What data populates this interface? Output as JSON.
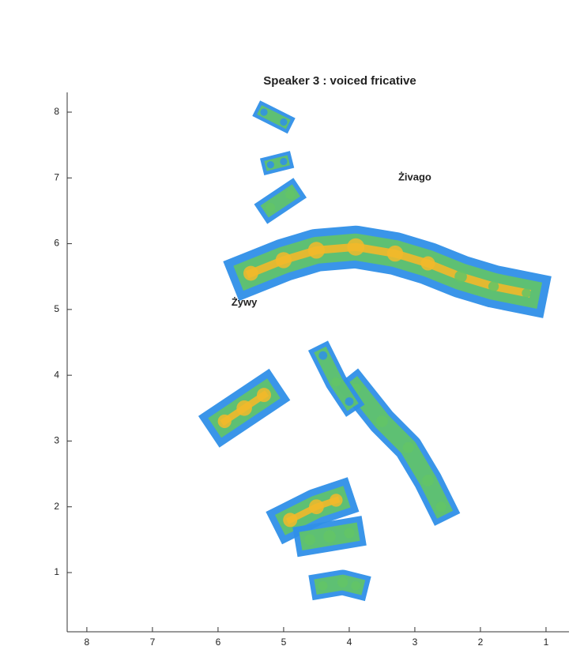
{
  "chart_data": {
    "type": "density",
    "title": "Speaker 3 : voiced fricative",
    "xlim": [
      8.3,
      0.65
    ],
    "ylim": [
      0.1,
      8.3
    ],
    "xticks": [
      8,
      7,
      6,
      5,
      4,
      3,
      2,
      1
    ],
    "yticks": [
      1,
      2,
      3,
      4,
      5,
      6,
      7,
      8
    ],
    "colormap": [
      "#2f8fe8",
      "#63c466",
      "#f2b82a"
    ],
    "annotations": [
      {
        "text": "Żivago",
        "x": 3.0,
        "y": 7.0
      },
      {
        "text": "Żywy",
        "x": 5.6,
        "y": 5.1
      }
    ],
    "series": [
      {
        "x": [
          5.5,
          5.0,
          4.5,
          3.9,
          3.3,
          2.8,
          2.3,
          1.8,
          1.3
        ],
        "y": [
          5.55,
          5.75,
          5.9,
          5.95,
          5.85,
          5.7,
          5.5,
          5.35,
          5.25
        ],
        "values": [
          0.8,
          0.9,
          0.95,
          1.0,
          0.9,
          0.75,
          0.6,
          0.45,
          0.35
        ]
      },
      {
        "x": [
          5.9,
          5.6,
          5.3
        ],
        "y": [
          3.3,
          3.5,
          3.7
        ],
        "values": [
          0.7,
          0.85,
          0.75
        ]
      },
      {
        "x": [
          4.9,
          4.5,
          4.2
        ],
        "y": [
          1.8,
          2.0,
          2.1
        ],
        "values": [
          0.75,
          0.8,
          0.65
        ]
      },
      {
        "x": [
          4.6,
          4.3,
          4.0
        ],
        "y": [
          1.5,
          1.55,
          1.6
        ],
        "values": [
          0.5,
          0.6,
          0.45
        ]
      },
      {
        "x": [
          3.9,
          3.5,
          3.1,
          2.8,
          2.6
        ],
        "y": [
          3.8,
          3.3,
          2.9,
          2.4,
          2.0
        ],
        "values": [
          0.45,
          0.55,
          0.5,
          0.55,
          0.45
        ]
      },
      {
        "x": [
          4.4,
          4.2,
          4.0
        ],
        "y": [
          4.3,
          3.9,
          3.6
        ],
        "values": [
          0.3,
          0.35,
          0.3
        ]
      },
      {
        "x": [
          5.2,
          4.9
        ],
        "y": [
          6.55,
          6.75
        ],
        "values": [
          0.35,
          0.4
        ]
      },
      {
        "x": [
          5.3,
          5.0
        ],
        "y": [
          8.0,
          7.85
        ],
        "values": [
          0.2,
          0.2
        ]
      },
      {
        "x": [
          5.2,
          5.0
        ],
        "y": [
          7.2,
          7.25
        ],
        "values": [
          0.2,
          0.2
        ]
      },
      {
        "x": [
          4.4,
          4.1,
          3.9
        ],
        "y": [
          0.8,
          0.85,
          0.8
        ],
        "values": [
          0.35,
          0.45,
          0.35
        ]
      }
    ]
  }
}
